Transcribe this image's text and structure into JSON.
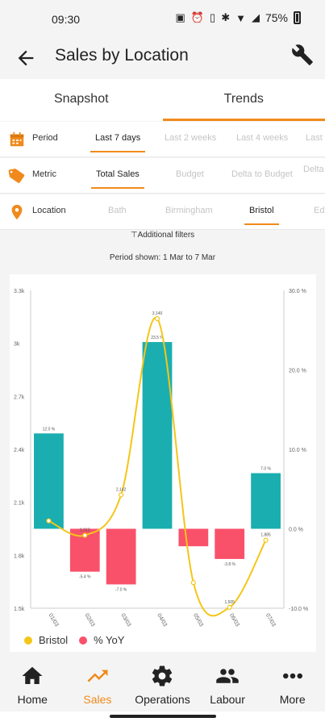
{
  "status": {
    "time": "09:30",
    "battery": "75%"
  },
  "header": {
    "title": "Sales by Location"
  },
  "tabs": [
    {
      "label": "Snapshot"
    },
    {
      "label": "Trends"
    }
  ],
  "filters": {
    "period": {
      "label": "Period",
      "options": [
        "Last 7 days",
        "Last 2 weeks",
        "Last 4 weeks",
        "Last"
      ],
      "selected": "Last 7 days"
    },
    "metric": {
      "label": "Metric",
      "options": [
        "Total Sales",
        "Budget",
        "Delta to Budget",
        "Delta"
      ],
      "selected": "Total Sales"
    },
    "location": {
      "label": "Location",
      "options": [
        "Bath",
        "Birmingham",
        "Bristol",
        "Ed"
      ],
      "selected": "Bristol"
    },
    "additional": "Additional filters",
    "period_shown": "Period shown: 1 Mar to 7 Mar"
  },
  "chart_data": {
    "type": "bar",
    "categories": [
      "01/03",
      "02/03",
      "03/03",
      "04/03",
      "05/03",
      "06/03",
      "07/03"
    ],
    "y_left_ticks": [
      "3.3k",
      "3k",
      "2.7k",
      "2.4k",
      "2.1k",
      "1.8k",
      "1.5k"
    ],
    "y_right_ticks": [
      "30.0 %",
      "20.0 %",
      "10.0 %",
      "0.0 %",
      "-10.0 %"
    ],
    "ylim_left": [
      1500,
      3300
    ],
    "ylim_right": [
      -10,
      30
    ],
    "series": [
      {
        "name": "Bristol",
        "type": "line",
        "color": "#f5c518",
        "values": [
          1995,
          1913,
          2142,
          3140,
          1645,
          1505,
          1885
        ],
        "labels": [
          "",
          "1,913",
          "2,142",
          "3,140",
          "",
          "1,505",
          "1,885"
        ]
      },
      {
        "name": "% YoY",
        "type": "bar",
        "color": "#f9516a",
        "pos_color": "#1aaeb0",
        "values": [
          12.0,
          -5.4,
          -7.0,
          23.5,
          -2.2,
          -3.8,
          7.0
        ],
        "labels": [
          "12.0 %",
          "-5.4 %",
          "-7.0 %",
          "23.5 %",
          "",
          "-3.8 %",
          "7.0 %"
        ]
      }
    ],
    "legend": [
      "Bristol",
      "% YoY"
    ]
  },
  "nav": [
    {
      "label": "Home",
      "icon": "home-icon"
    },
    {
      "label": "Sales",
      "icon": "trending-up-icon",
      "active": true
    },
    {
      "label": "Operations",
      "icon": "gear-icon"
    },
    {
      "label": "Labour",
      "icon": "people-icon"
    },
    {
      "label": "More",
      "icon": "more-dots-icon"
    }
  ]
}
